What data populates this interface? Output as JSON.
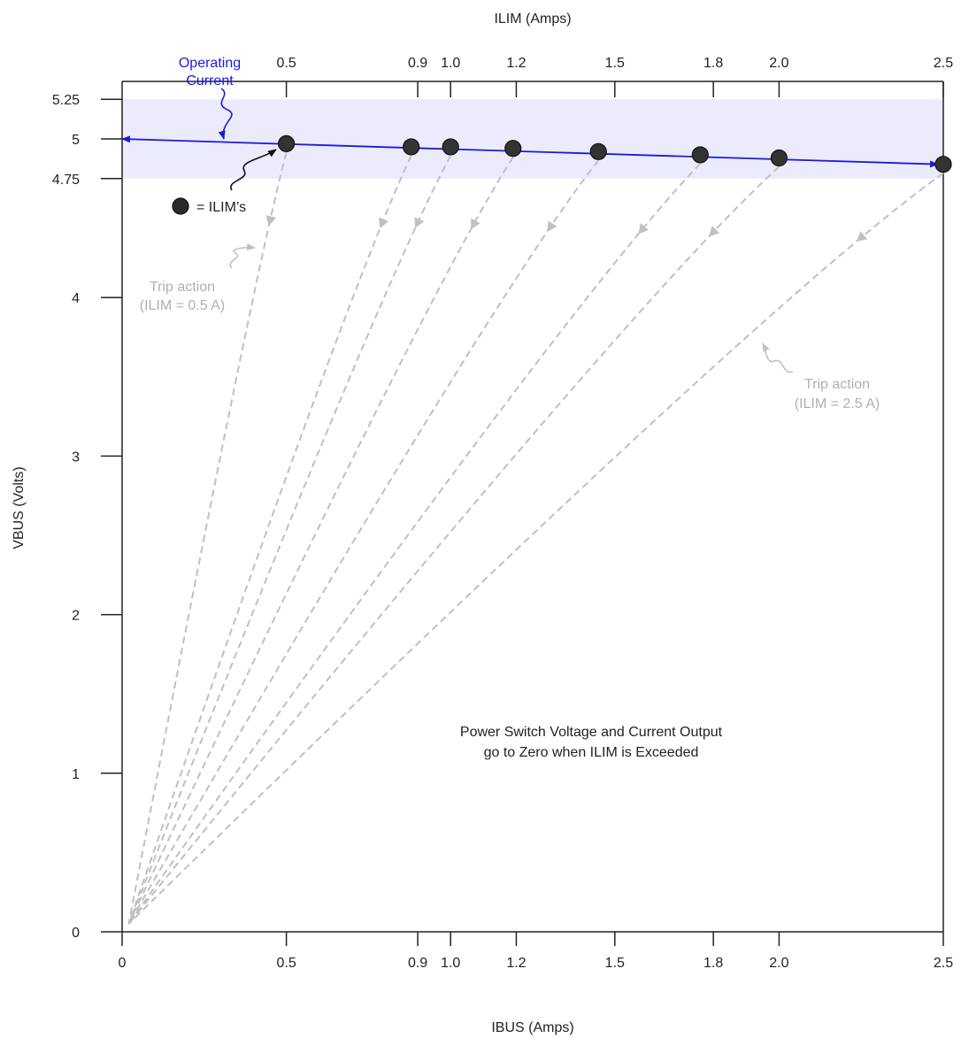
{
  "chart_data": {
    "type": "line",
    "top_axis_title": "ILIM (Amps)",
    "xlabel": "IBUS (Amps)",
    "ylabel": "VBUS (Volts)",
    "xlim": [
      0,
      2.5
    ],
    "ylim": [
      0,
      5.25
    ],
    "x_ticks": [
      "0",
      "0.5",
      "0.9",
      "1.0",
      "1.2",
      "1.5",
      "1.8",
      "2.0",
      "2.5"
    ],
    "x_tick_values": [
      0,
      0.5,
      0.9,
      1.0,
      1.2,
      1.5,
      1.8,
      2.0,
      2.5
    ],
    "top_ticks": [
      "0.5",
      "0.9",
      "1.0",
      "1.2",
      "1.5",
      "1.8",
      "2.0",
      "2.5"
    ],
    "top_tick_values": [
      0.5,
      0.9,
      1.0,
      1.2,
      1.5,
      1.8,
      2.0,
      2.5
    ],
    "y_ticks": [
      "0",
      "1",
      "2",
      "3",
      "4",
      "4.75",
      "5",
      "5.25"
    ],
    "y_tick_values": [
      0,
      1,
      2,
      3,
      4,
      4.75,
      5,
      5.25
    ],
    "operating_band": [
      4.75,
      5.25
    ],
    "operating_line": {
      "x": [
        0,
        2.5
      ],
      "y": [
        5.0,
        4.84
      ]
    },
    "ilim_points": {
      "x": [
        0.5,
        0.88,
        1.0,
        1.19,
        1.45,
        1.76,
        2.0,
        2.5
      ],
      "y": [
        4.97,
        4.95,
        4.95,
        4.94,
        4.92,
        4.9,
        4.88,
        4.84
      ]
    },
    "trip_action_endpoint": {
      "x": 0.02,
      "y": 0.05
    },
    "colors": {
      "operating_line": "#1a1adb",
      "band": "#ebebfc",
      "trip_lines": "#c0c0c0",
      "points": "#333333"
    }
  },
  "annotations": {
    "operating_current_line1": "Operating",
    "operating_current_line2": "Current",
    "legend_marker_label": "= ILIM’s",
    "trip_left_line1": "Trip action",
    "trip_left_line2": "(ILIM = 0.5 A)",
    "trip_right_line1": "Trip action",
    "trip_right_line2": "(ILIM = 2.5 A)",
    "note_line1": "Power Switch Voltage and Current Output",
    "note_line2": "go to Zero when ILIM is Exceeded"
  }
}
